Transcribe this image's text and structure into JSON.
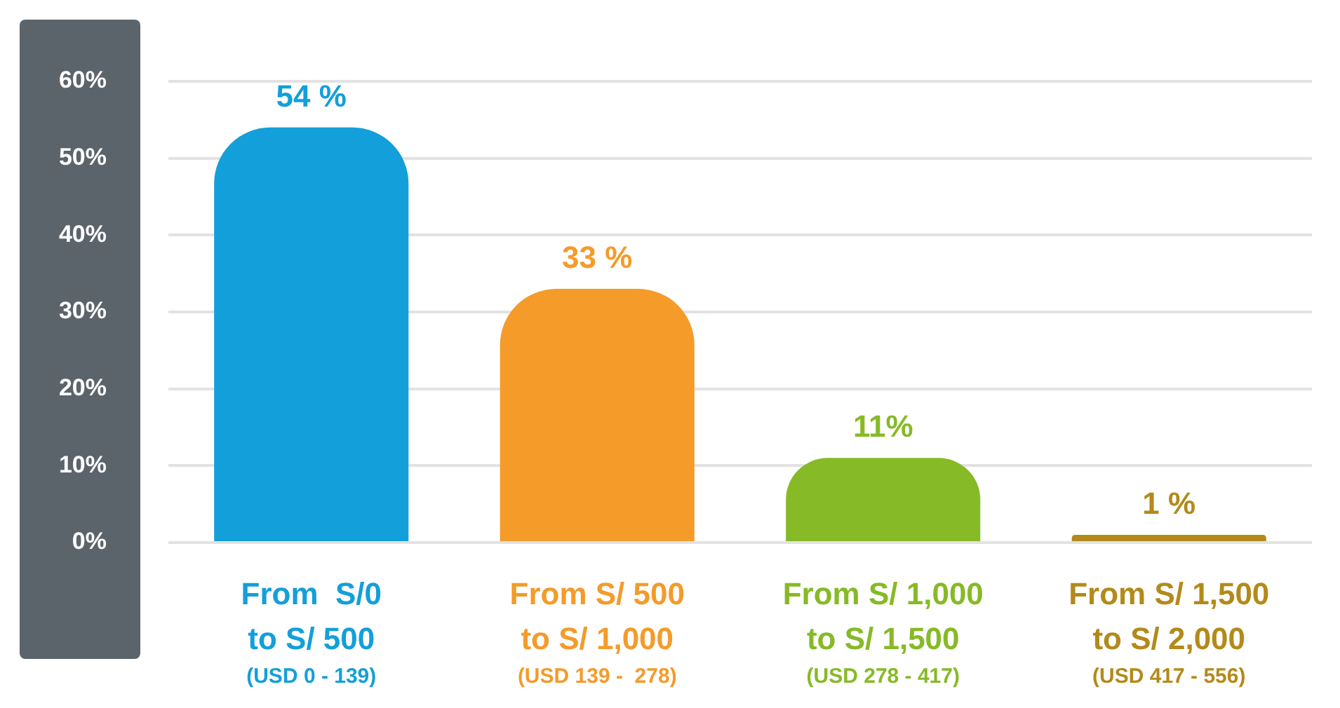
{
  "chart_data": {
    "type": "bar",
    "categories": [
      "From  S/0\nto S/ 500\n(USD 0 - 139)",
      "From S/ 500\nto S/ 1,000\n(USD 139 -  278)",
      "From S/ 1,000\nto S/ 1,500\n(USD 278 - 417)",
      "From S/ 1,500\nto S/ 2,000\n(USD 417 - 556)"
    ],
    "values": [
      54,
      33,
      11,
      1
    ],
    "colors": [
      "#139fda",
      "#f49b2a",
      "#86ba26",
      "#b38a1a"
    ],
    "value_labels": [
      "54 %",
      "33 %",
      "11%",
      "1 %"
    ],
    "ylim": [
      0,
      60
    ],
    "yticks": [
      {
        "value": 0,
        "label": "0%"
      },
      {
        "value": 10,
        "label": "10%"
      },
      {
        "value": 20,
        "label": "20%"
      },
      {
        "value": 30,
        "label": "30%"
      },
      {
        "value": 40,
        "label": "40%"
      },
      {
        "value": 50,
        "label": "50%"
      },
      {
        "value": 60,
        "label": "60%"
      }
    ],
    "grid": "y"
  }
}
